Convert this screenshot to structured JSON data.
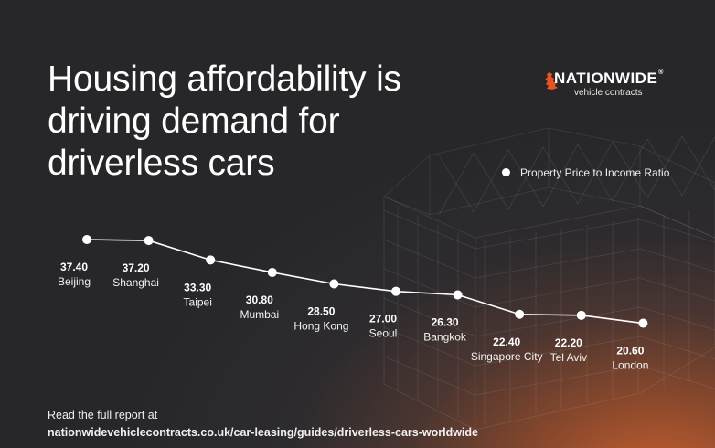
{
  "header": {
    "title": "Housing affordability is driving demand for driverless cars"
  },
  "logo": {
    "brand": "NATIONWIDE",
    "registered_mark": "®",
    "sub": "vehicle contracts",
    "accent_color": "#e8541f"
  },
  "legend": {
    "label": "Property Price to Income Ratio",
    "color": "#ffffff"
  },
  "chart_data": {
    "type": "line",
    "categories": [
      "Beijing",
      "Shanghai",
      "Taipei",
      "Mumbai",
      "Hong Kong",
      "Seoul",
      "Bangkok",
      "Singapore City",
      "Tel Aviv",
      "London"
    ],
    "series": [
      {
        "name": "Property Price to Income Ratio",
        "values": [
          37.4,
          37.2,
          33.3,
          30.8,
          28.5,
          27.0,
          26.3,
          22.4,
          22.2,
          20.6
        ],
        "value_labels": [
          "37.40",
          "37.20",
          "33.30",
          "30.80",
          "28.50",
          "27.00",
          "26.30",
          "22.40",
          "22.20",
          "20.60"
        ]
      }
    ],
    "xlabel": "",
    "ylabel": "",
    "grid": false,
    "legend_position": "top-right",
    "line_color": "#ffffff"
  },
  "footer": {
    "line1": "Read the full report at",
    "url": "nationwidevehiclecontracts.co.uk/car-leasing/guides/driverless-cars-worldwide"
  }
}
